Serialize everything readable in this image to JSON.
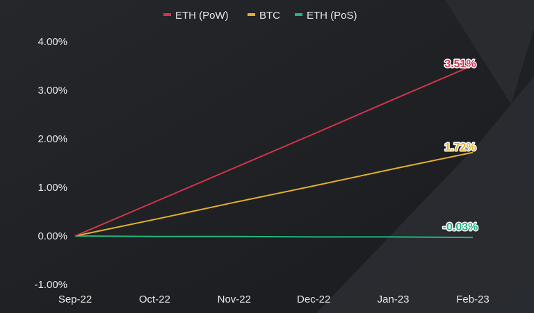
{
  "chart_data": {
    "type": "line",
    "title": "",
    "xlabel": "",
    "ylabel": "",
    "categories": [
      "Sep-22",
      "Oct-22",
      "Nov-22",
      "Dec-22",
      "Jan-23",
      "Feb-23"
    ],
    "ylim": [
      -0.01,
      0.04
    ],
    "yticks": [
      "4.00%",
      "3.00%",
      "2.00%",
      "1.00%",
      "0.00%",
      "-1.00%"
    ],
    "ytick_values": [
      0.04,
      0.03,
      0.02,
      0.01,
      0.0,
      -0.01
    ],
    "grid": false,
    "legend_position": "top-center",
    "series": [
      {
        "name": "ETH (PoW)",
        "color": "#d0364a",
        "values": [
          0.0,
          0.007,
          0.014,
          0.021,
          0.0281,
          0.0351
        ],
        "end_label": "3.51%"
      },
      {
        "name": "BTC",
        "color": "#e3b02a",
        "values": [
          0.0,
          0.0034,
          0.0069,
          0.0103,
          0.0138,
          0.0172
        ],
        "end_label": "1.72%"
      },
      {
        "name": "ETH (PoS)",
        "color": "#1fb87e",
        "values": [
          0.0,
          -0.0001,
          -0.0001,
          -0.0002,
          -0.0002,
          -0.0003
        ],
        "end_label": "-0.03%"
      }
    ]
  }
}
